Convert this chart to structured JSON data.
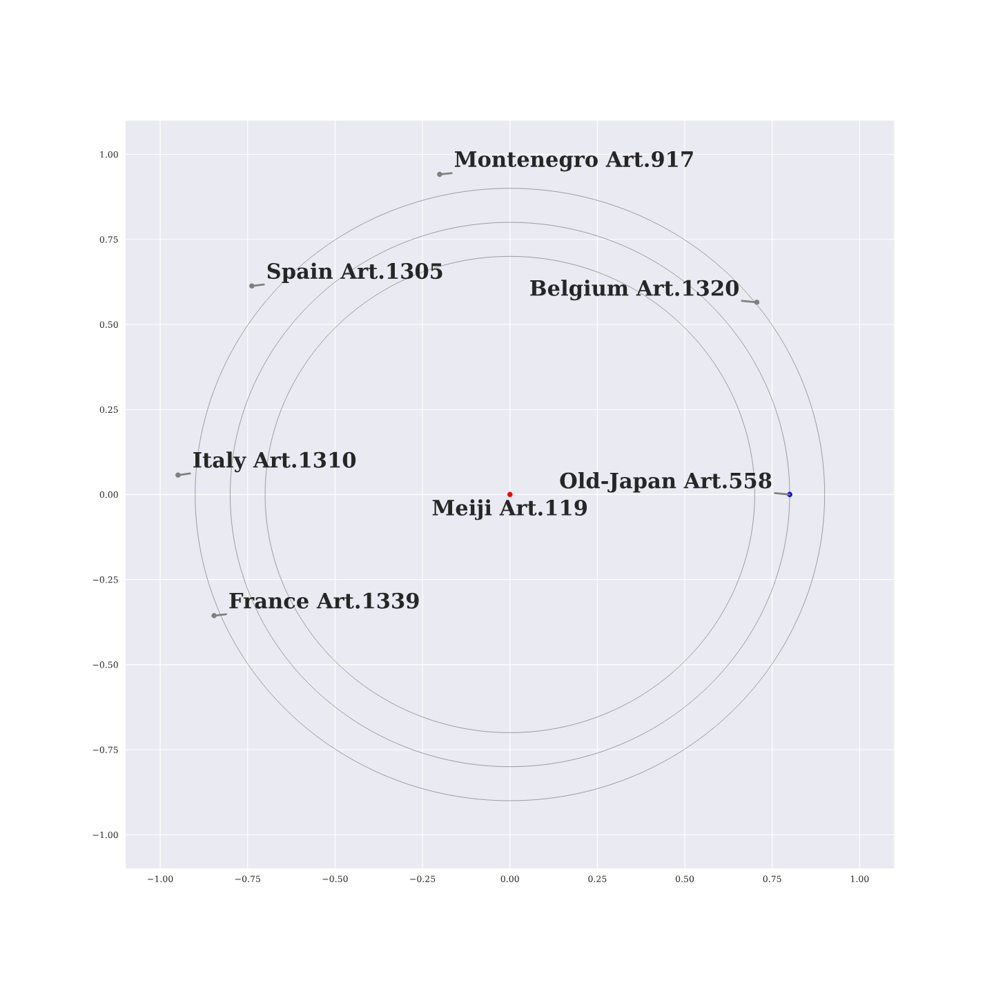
{
  "chart_data": {
    "type": "scatter",
    "xlim": [
      -1.1,
      1.1
    ],
    "ylim": [
      -1.1,
      1.1
    ],
    "xticks": [
      {
        "value": -1.0,
        "label": "−1.00"
      },
      {
        "value": -0.75,
        "label": "−0.75"
      },
      {
        "value": -0.5,
        "label": "−0.50"
      },
      {
        "value": -0.25,
        "label": "−0.25"
      },
      {
        "value": 0,
        "label": "0.00"
      },
      {
        "value": 0.25,
        "label": "0.25"
      },
      {
        "value": 0.5,
        "label": "0.50"
      },
      {
        "value": 0.75,
        "label": "0.75"
      },
      {
        "value": 1.0,
        "label": "1.00"
      }
    ],
    "yticks": [
      {
        "value": -1.0,
        "label": "−1.00"
      },
      {
        "value": -0.75,
        "label": "−0.75"
      },
      {
        "value": -0.5,
        "label": "−0.50"
      },
      {
        "value": -0.25,
        "label": "−0.25"
      },
      {
        "value": 0,
        "label": "0.00"
      },
      {
        "value": 0.25,
        "label": "0.25"
      },
      {
        "value": 0.5,
        "label": "0.50"
      },
      {
        "value": 0.75,
        "label": "0.75"
      },
      {
        "value": 1.0,
        "label": "1.00"
      }
    ],
    "grid": true,
    "legend": false,
    "series": [
      {
        "type": "scatter",
        "x": [
          0,
          0.8,
          0.706,
          -0.201,
          -0.738,
          -0.949,
          -0.846
        ],
        "values": [
          0,
          0,
          0.565,
          0.941,
          0.613,
          0.057,
          -0.356
        ],
        "colors": [
          "#ff0000",
          "#0000ff",
          "#808080",
          "#808080",
          "#808080",
          "#808080",
          "#808080"
        ]
      }
    ],
    "annotations": [
      {
        "text": "Meiji Art.119",
        "x": 0,
        "y": 0
      },
      {
        "text": "Old-Japan Art.558",
        "x": 0.8,
        "y": 0
      },
      {
        "text": "Belgium Art.1320",
        "x": 0.706,
        "y": 0.565
      },
      {
        "text": "Montenegro Art.917",
        "x": -0.201,
        "y": 0.941
      },
      {
        "text": "Spain Art.1305",
        "x": -0.738,
        "y": 0.613
      },
      {
        "text": "Italy Art.1310",
        "x": -0.949,
        "y": 0.057
      },
      {
        "text": "France Art.1339",
        "x": -0.846,
        "y": -0.356
      }
    ]
  }
}
